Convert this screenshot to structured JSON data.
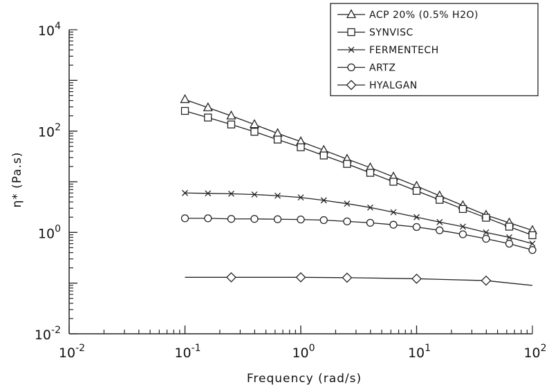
{
  "chart_data": {
    "type": "line",
    "xlabel": "Frequency  (rad/s)",
    "ylabel": "η* (Pa.s)",
    "x_scale": "log",
    "y_scale": "log",
    "xlim": [
      0.01,
      100
    ],
    "ylim": [
      0.01,
      10000
    ],
    "x_ticks": [
      {
        "value": 0.01,
        "base": "10",
        "exp": "-2"
      },
      {
        "value": 0.1,
        "base": "10",
        "exp": "-1"
      },
      {
        "value": 1,
        "base": "10",
        "exp": "0"
      },
      {
        "value": 10,
        "base": "10",
        "exp": "1"
      },
      {
        "value": 100,
        "base": "10",
        "exp": "2"
      }
    ],
    "y_ticks": [
      {
        "value": 0.01,
        "base": "10",
        "exp": "-2"
      },
      {
        "value": 1,
        "base": "10",
        "exp": "0"
      },
      {
        "value": 100,
        "base": "10",
        "exp": "2"
      },
      {
        "value": 10000,
        "base": "10",
        "exp": "4"
      }
    ],
    "grid": false,
    "legend_position": "top-right",
    "series": [
      {
        "name": "ACP  20% (0.5% H2O)",
        "marker": "triangle",
        "x": [
          0.1,
          0.158,
          0.251,
          0.398,
          0.631,
          1,
          1.58,
          2.51,
          3.98,
          6.31,
          10,
          15.8,
          25.1,
          39.8,
          63.1,
          100
        ],
        "y": [
          420,
          290,
          200,
          135,
          90,
          62,
          42,
          28,
          19,
          12.5,
          8.2,
          5.3,
          3.4,
          2.2,
          1.55,
          1.1
        ]
      },
      {
        "name": "SYNVISC",
        "marker": "square",
        "x": [
          0.1,
          0.158,
          0.251,
          0.398,
          0.631,
          1,
          1.58,
          2.51,
          3.98,
          6.31,
          10,
          15.8,
          25.1,
          39.8,
          63.1,
          100
        ],
        "y": [
          250,
          185,
          135,
          97,
          68,
          48,
          33,
          22.5,
          15,
          10,
          6.6,
          4.4,
          2.9,
          1.95,
          1.3,
          0.88
        ]
      },
      {
        "name": "FERMENTECH",
        "marker": "x",
        "x": [
          0.1,
          0.158,
          0.251,
          0.398,
          0.631,
          1,
          1.58,
          2.51,
          3.98,
          6.31,
          10,
          15.8,
          25.1,
          39.8,
          63.1,
          100
        ],
        "y": [
          6.0,
          5.9,
          5.8,
          5.6,
          5.3,
          4.9,
          4.3,
          3.7,
          3.1,
          2.5,
          2.0,
          1.6,
          1.3,
          1.0,
          0.8,
          0.6
        ]
      },
      {
        "name": "ARTZ",
        "marker": "circle",
        "x": [
          0.1,
          0.158,
          0.251,
          0.398,
          0.631,
          1,
          1.58,
          2.51,
          3.98,
          6.31,
          10,
          15.8,
          25.1,
          39.8,
          63.1,
          100
        ],
        "y": [
          1.9,
          1.9,
          1.85,
          1.85,
          1.82,
          1.8,
          1.75,
          1.65,
          1.55,
          1.42,
          1.28,
          1.1,
          0.92,
          0.75,
          0.6,
          0.45
        ]
      },
      {
        "name": "HYALGAN",
        "marker": "diamond",
        "x": [
          0.1,
          0.251,
          1,
          2.51,
          10,
          39.8,
          100
        ],
        "y": [
          0.13,
          0.13,
          0.13,
          0.128,
          0.122,
          0.112,
          0.09
        ],
        "marker_points": [
          0.251,
          1,
          2.51,
          10,
          39.8
        ]
      }
    ]
  }
}
